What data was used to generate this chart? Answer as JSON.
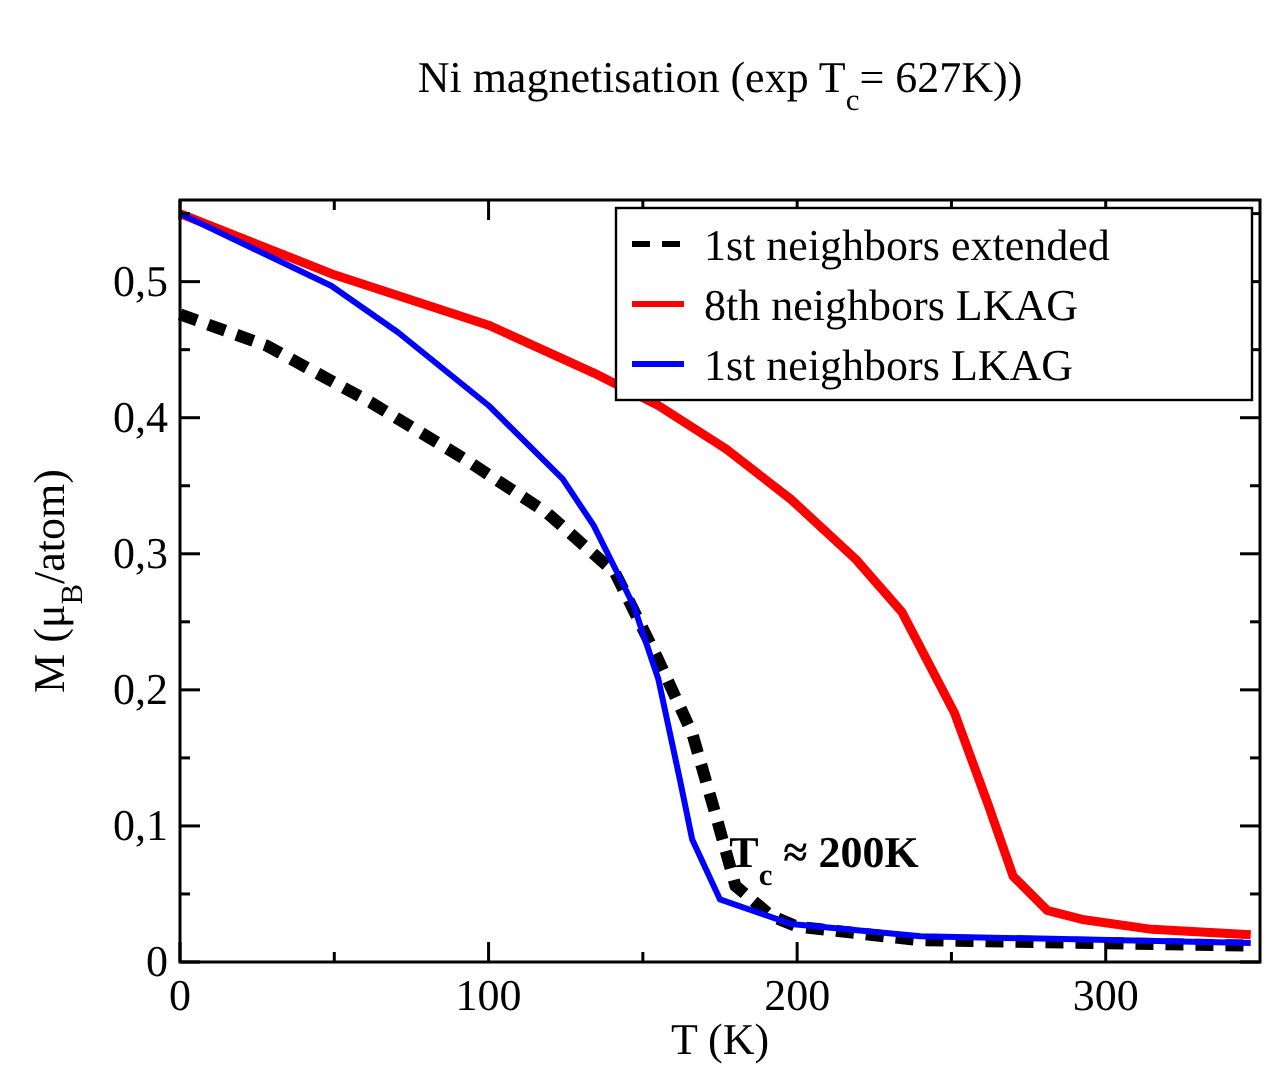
{
  "chart_data": {
    "type": "line",
    "title": "Ni magnetisation (exp T$_{c}$= 627K))",
    "xlabel": "T (K)",
    "ylabel": "M (μ$_{B}$/atom)",
    "xlim": [
      0,
      350
    ],
    "xticks": [
      0,
      {
        "value": 50,
        "label": null
      },
      100,
      {
        "value": 150,
        "label": null
      },
      200,
      {
        "value": 250,
        "label": null
      },
      300
    ],
    "ylim": [
      0,
      0.56
    ],
    "yticks": [
      0,
      {
        "value": 0.05,
        "label": null
      },
      {
        "value": 0.1,
        "label": "0,1"
      },
      {
        "value": 0.15,
        "label": null
      },
      {
        "value": 0.2,
        "label": "0,2"
      },
      {
        "value": 0.25,
        "label": null
      },
      {
        "value": 0.3,
        "label": "0,3"
      },
      {
        "value": 0.35,
        "label": null
      },
      {
        "value": 0.4,
        "label": "0,4"
      },
      {
        "value": 0.45,
        "label": null
      },
      {
        "value": 0.5,
        "label": "0,5"
      },
      {
        "value": 0.55,
        "label": null
      }
    ],
    "grid": false,
    "legend": "top right",
    "marker": "none",
    "series": [
      {
        "name": "1st neighbors extended",
        "color": "#000000",
        "line_style": "dashed",
        "x": [
          0,
          28,
          62,
          92,
          119,
          141,
          155,
          166,
          173.5,
          180,
          191.5,
          200,
          240,
          347
        ],
        "values": [
          0.476,
          0.453,
          0.411,
          0.37,
          0.33,
          0.286,
          0.222,
          0.168,
          0.109,
          0.056,
          0.034,
          0.026,
          0.016,
          0.012
        ]
      },
      {
        "name": "8th neighbors LKAG",
        "color": "#ff0000",
        "line_style": "solid",
        "x": [
          0,
          50,
          100,
          134,
          155,
          177,
          198,
          219,
          234,
          251,
          262,
          270,
          281,
          293,
          315,
          347
        ],
        "values": [
          0.55,
          0.505,
          0.468,
          0.433,
          0.409,
          0.377,
          0.34,
          0.296,
          0.257,
          0.183,
          0.115,
          0.063,
          0.038,
          0.031,
          0.024,
          0.02
        ]
      },
      {
        "name": "1st neighbors LKAG",
        "color": "#0000ff",
        "line_style": "solid",
        "x": [
          0,
          49,
          70.5,
          100,
          124,
          134,
          147,
          155,
          162,
          166,
          175,
          198,
          240,
          347
        ],
        "values": [
          0.55,
          0.497,
          0.463,
          0.409,
          0.355,
          0.321,
          0.262,
          0.208,
          0.134,
          0.09,
          0.046,
          0.028,
          0.019,
          0.014
        ]
      }
    ],
    "annotations": [
      {
        "text": "T$_{c}$ ≈ 200K",
        "x": 178,
        "y": 0.07
      }
    ]
  }
}
